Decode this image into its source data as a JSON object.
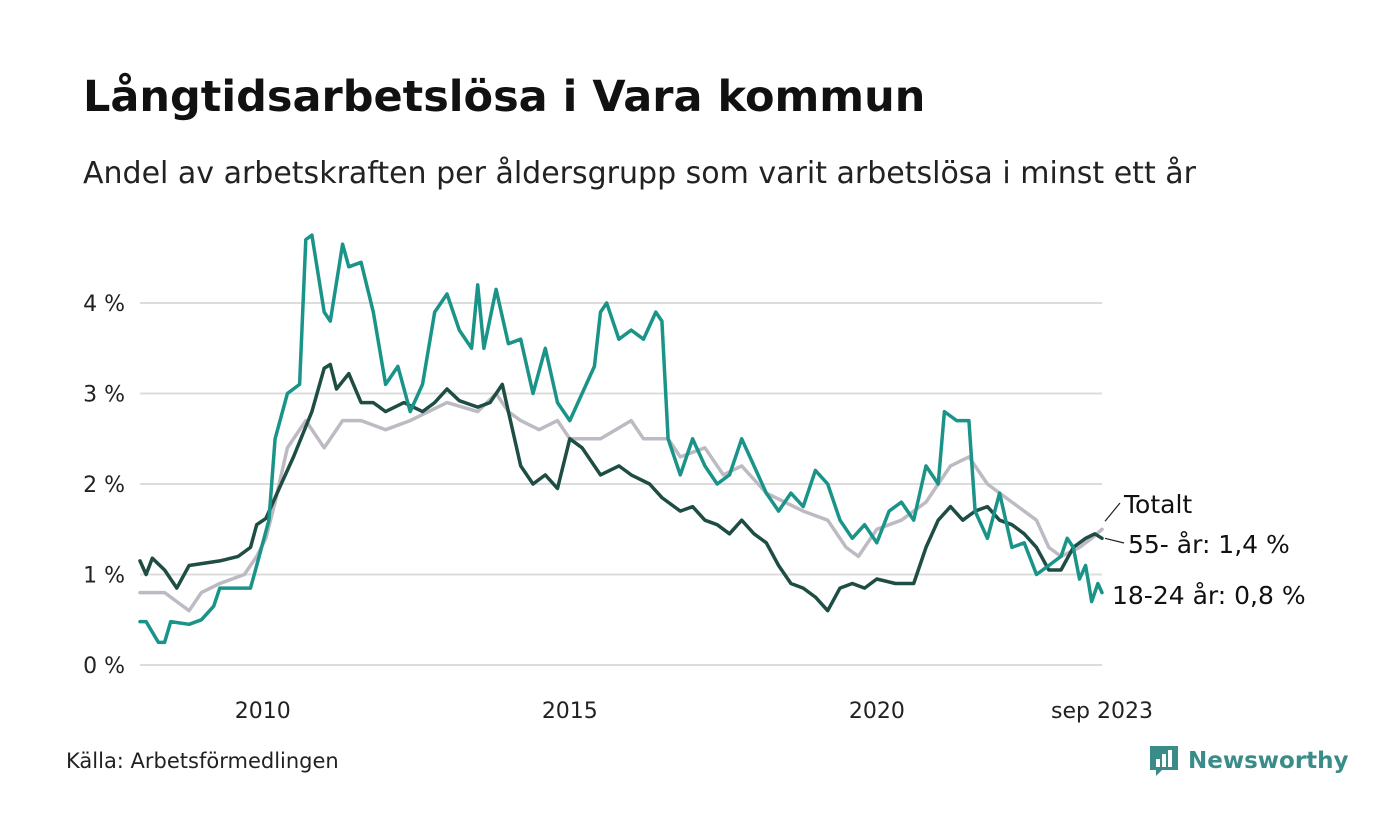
{
  "header": {
    "title": "Långtidsarbetslösa i Vara kommun",
    "subtitle": "Andel av arbetskraften per åldersgrupp som varit arbetslösa i minst ett år"
  },
  "footer": {
    "source": "Källa: Arbetsförmedlingen",
    "brand": "Newsworthy"
  },
  "colors": {
    "total": "#bdbac4",
    "age55": "#1e4d44",
    "age18_24": "#1a9488",
    "grid": "#dcdcdc",
    "brand": "#3a8c89"
  },
  "chart_data": {
    "type": "line",
    "title": "Långtidsarbetslösa i Vara kommun",
    "ylim": [
      0,
      5
    ],
    "yticks": [
      0,
      1,
      2,
      3,
      4
    ],
    "ytick_labels": [
      "0 %",
      "1 %",
      "2 %",
      "3 %",
      "4 %"
    ],
    "xlim": [
      2008.0,
      2023.667
    ],
    "xticks": [
      2010,
      2015,
      2020,
      2023.667
    ],
    "xtick_labels": [
      "2010",
      "2015",
      "2020",
      "sep 2023"
    ],
    "grid": true,
    "series": [
      {
        "name": "Totalt",
        "label": "Totalt",
        "color_key": "total",
        "points": [
          [
            2008.0,
            0.8
          ],
          [
            2008.4,
            0.8
          ],
          [
            2008.6,
            0.7
          ],
          [
            2008.8,
            0.6
          ],
          [
            2009.0,
            0.8
          ],
          [
            2009.3,
            0.9
          ],
          [
            2009.7,
            1.0
          ],
          [
            2009.9,
            1.2
          ],
          [
            2010.05,
            1.4
          ],
          [
            2010.2,
            1.8
          ],
          [
            2010.4,
            2.4
          ],
          [
            2010.7,
            2.7
          ],
          [
            2011.0,
            2.4
          ],
          [
            2011.3,
            2.7
          ],
          [
            2011.6,
            2.7
          ],
          [
            2012.0,
            2.6
          ],
          [
            2012.4,
            2.7
          ],
          [
            2012.7,
            2.8
          ],
          [
            2013.0,
            2.9
          ],
          [
            2013.5,
            2.8
          ],
          [
            2013.8,
            3.0
          ],
          [
            2014.0,
            2.8
          ],
          [
            2014.2,
            2.7
          ],
          [
            2014.5,
            2.6
          ],
          [
            2014.8,
            2.7
          ],
          [
            2015.0,
            2.5
          ],
          [
            2015.5,
            2.5
          ],
          [
            2016.0,
            2.7
          ],
          [
            2016.2,
            2.5
          ],
          [
            2016.6,
            2.5
          ],
          [
            2016.8,
            2.3
          ],
          [
            2017.2,
            2.4
          ],
          [
            2017.5,
            2.1
          ],
          [
            2017.8,
            2.2
          ],
          [
            2018.2,
            1.9
          ],
          [
            2018.5,
            1.8
          ],
          [
            2018.8,
            1.7
          ],
          [
            2019.2,
            1.6
          ],
          [
            2019.5,
            1.3
          ],
          [
            2019.7,
            1.2
          ],
          [
            2020.0,
            1.5
          ],
          [
            2020.4,
            1.6
          ],
          [
            2020.8,
            1.8
          ],
          [
            2021.2,
            2.2
          ],
          [
            2021.5,
            2.3
          ],
          [
            2021.8,
            2.0
          ],
          [
            2022.2,
            1.8
          ],
          [
            2022.6,
            1.6
          ],
          [
            2022.8,
            1.3
          ],
          [
            2023.0,
            1.2
          ],
          [
            2023.3,
            1.3
          ],
          [
            2023.5,
            1.4
          ],
          [
            2023.667,
            1.5
          ]
        ],
        "end_value_label": ""
      },
      {
        "name": "55- år",
        "label": "55- år: 1,4 %",
        "color_key": "age55",
        "points": [
          [
            2008.0,
            1.15
          ],
          [
            2008.1,
            1.0
          ],
          [
            2008.2,
            1.18
          ],
          [
            2008.4,
            1.05
          ],
          [
            2008.6,
            0.85
          ],
          [
            2008.8,
            1.1
          ],
          [
            2009.0,
            1.12
          ],
          [
            2009.3,
            1.15
          ],
          [
            2009.6,
            1.2
          ],
          [
            2009.8,
            1.3
          ],
          [
            2009.9,
            1.55
          ],
          [
            2010.05,
            1.62
          ],
          [
            2010.3,
            2.0
          ],
          [
            2010.5,
            2.3
          ],
          [
            2010.8,
            2.8
          ],
          [
            2011.0,
            3.28
          ],
          [
            2011.1,
            3.32
          ],
          [
            2011.2,
            3.05
          ],
          [
            2011.4,
            3.22
          ],
          [
            2011.6,
            2.9
          ],
          [
            2011.8,
            2.9
          ],
          [
            2012.0,
            2.8
          ],
          [
            2012.3,
            2.9
          ],
          [
            2012.6,
            2.8
          ],
          [
            2012.8,
            2.9
          ],
          [
            2013.0,
            3.05
          ],
          [
            2013.2,
            2.92
          ],
          [
            2013.5,
            2.85
          ],
          [
            2013.7,
            2.9
          ],
          [
            2013.9,
            3.1
          ],
          [
            2014.0,
            2.8
          ],
          [
            2014.2,
            2.2
          ],
          [
            2014.4,
            2.0
          ],
          [
            2014.6,
            2.1
          ],
          [
            2014.8,
            1.95
          ],
          [
            2015.0,
            2.5
          ],
          [
            2015.2,
            2.4
          ],
          [
            2015.5,
            2.1
          ],
          [
            2015.8,
            2.2
          ],
          [
            2016.0,
            2.1
          ],
          [
            2016.3,
            2.0
          ],
          [
            2016.5,
            1.85
          ],
          [
            2016.8,
            1.7
          ],
          [
            2017.0,
            1.75
          ],
          [
            2017.2,
            1.6
          ],
          [
            2017.4,
            1.55
          ],
          [
            2017.6,
            1.45
          ],
          [
            2017.8,
            1.6
          ],
          [
            2018.0,
            1.45
          ],
          [
            2018.2,
            1.35
          ],
          [
            2018.4,
            1.1
          ],
          [
            2018.6,
            0.9
          ],
          [
            2018.8,
            0.85
          ],
          [
            2019.0,
            0.75
          ],
          [
            2019.2,
            0.6
          ],
          [
            2019.4,
            0.85
          ],
          [
            2019.6,
            0.9
          ],
          [
            2019.8,
            0.85
          ],
          [
            2020.0,
            0.95
          ],
          [
            2020.3,
            0.9
          ],
          [
            2020.6,
            0.9
          ],
          [
            2020.8,
            1.3
          ],
          [
            2021.0,
            1.6
          ],
          [
            2021.2,
            1.75
          ],
          [
            2021.4,
            1.6
          ],
          [
            2021.6,
            1.7
          ],
          [
            2021.8,
            1.75
          ],
          [
            2022.0,
            1.6
          ],
          [
            2022.2,
            1.55
          ],
          [
            2022.4,
            1.45
          ],
          [
            2022.6,
            1.3
          ],
          [
            2022.8,
            1.05
          ],
          [
            2023.0,
            1.05
          ],
          [
            2023.2,
            1.3
          ],
          [
            2023.4,
            1.4
          ],
          [
            2023.55,
            1.45
          ],
          [
            2023.667,
            1.4
          ]
        ],
        "end_value_label": "55- år: 1,4 %"
      },
      {
        "name": "18-24 år",
        "label": "18-24 år: 0,8 %",
        "color_key": "age18_24",
        "points": [
          [
            2008.0,
            0.48
          ],
          [
            2008.1,
            0.48
          ],
          [
            2008.3,
            0.25
          ],
          [
            2008.4,
            0.25
          ],
          [
            2008.5,
            0.48
          ],
          [
            2008.8,
            0.45
          ],
          [
            2009.0,
            0.5
          ],
          [
            2009.2,
            0.65
          ],
          [
            2009.3,
            0.85
          ],
          [
            2009.6,
            0.85
          ],
          [
            2009.8,
            0.85
          ],
          [
            2009.9,
            1.1
          ],
          [
            2010.1,
            1.6
          ],
          [
            2010.2,
            2.5
          ],
          [
            2010.4,
            3.0
          ],
          [
            2010.6,
            3.1
          ],
          [
            2010.7,
            4.7
          ],
          [
            2010.8,
            4.75
          ],
          [
            2011.0,
            3.9
          ],
          [
            2011.1,
            3.8
          ],
          [
            2011.3,
            4.65
          ],
          [
            2011.4,
            4.4
          ],
          [
            2011.6,
            4.45
          ],
          [
            2011.8,
            3.9
          ],
          [
            2012.0,
            3.1
          ],
          [
            2012.2,
            3.3
          ],
          [
            2012.4,
            2.8
          ],
          [
            2012.6,
            3.1
          ],
          [
            2012.8,
            3.9
          ],
          [
            2013.0,
            4.1
          ],
          [
            2013.2,
            3.7
          ],
          [
            2013.4,
            3.5
          ],
          [
            2013.5,
            4.2
          ],
          [
            2013.6,
            3.5
          ],
          [
            2013.8,
            4.15
          ],
          [
            2014.0,
            3.55
          ],
          [
            2014.2,
            3.6
          ],
          [
            2014.4,
            3.0
          ],
          [
            2014.6,
            3.5
          ],
          [
            2014.8,
            2.9
          ],
          [
            2015.0,
            2.7
          ],
          [
            2015.2,
            3.0
          ],
          [
            2015.4,
            3.3
          ],
          [
            2015.5,
            3.9
          ],
          [
            2015.6,
            4.0
          ],
          [
            2015.8,
            3.6
          ],
          [
            2016.0,
            3.7
          ],
          [
            2016.2,
            3.6
          ],
          [
            2016.4,
            3.9
          ],
          [
            2016.5,
            3.8
          ],
          [
            2016.6,
            2.5
          ],
          [
            2016.8,
            2.1
          ],
          [
            2017.0,
            2.5
          ],
          [
            2017.2,
            2.2
          ],
          [
            2017.4,
            2.0
          ],
          [
            2017.6,
            2.1
          ],
          [
            2017.8,
            2.5
          ],
          [
            2018.0,
            2.2
          ],
          [
            2018.2,
            1.9
          ],
          [
            2018.4,
            1.7
          ],
          [
            2018.6,
            1.9
          ],
          [
            2018.8,
            1.75
          ],
          [
            2019.0,
            2.15
          ],
          [
            2019.2,
            2.0
          ],
          [
            2019.4,
            1.6
          ],
          [
            2019.6,
            1.4
          ],
          [
            2019.8,
            1.55
          ],
          [
            2020.0,
            1.35
          ],
          [
            2020.2,
            1.7
          ],
          [
            2020.4,
            1.8
          ],
          [
            2020.6,
            1.6
          ],
          [
            2020.8,
            2.2
          ],
          [
            2021.0,
            2.0
          ],
          [
            2021.1,
            2.8
          ],
          [
            2021.3,
            2.7
          ],
          [
            2021.5,
            2.7
          ],
          [
            2021.6,
            1.7
          ],
          [
            2021.8,
            1.4
          ],
          [
            2022.0,
            1.9
          ],
          [
            2022.2,
            1.3
          ],
          [
            2022.4,
            1.35
          ],
          [
            2022.6,
            1.0
          ],
          [
            2022.8,
            1.1
          ],
          [
            2023.0,
            1.2
          ],
          [
            2023.1,
            1.4
          ],
          [
            2023.2,
            1.3
          ],
          [
            2023.3,
            0.95
          ],
          [
            2023.4,
            1.1
          ],
          [
            2023.5,
            0.7
          ],
          [
            2023.6,
            0.9
          ],
          [
            2023.667,
            0.8
          ]
        ],
        "end_value_label": "18-24 år: 0,8 %"
      }
    ]
  }
}
